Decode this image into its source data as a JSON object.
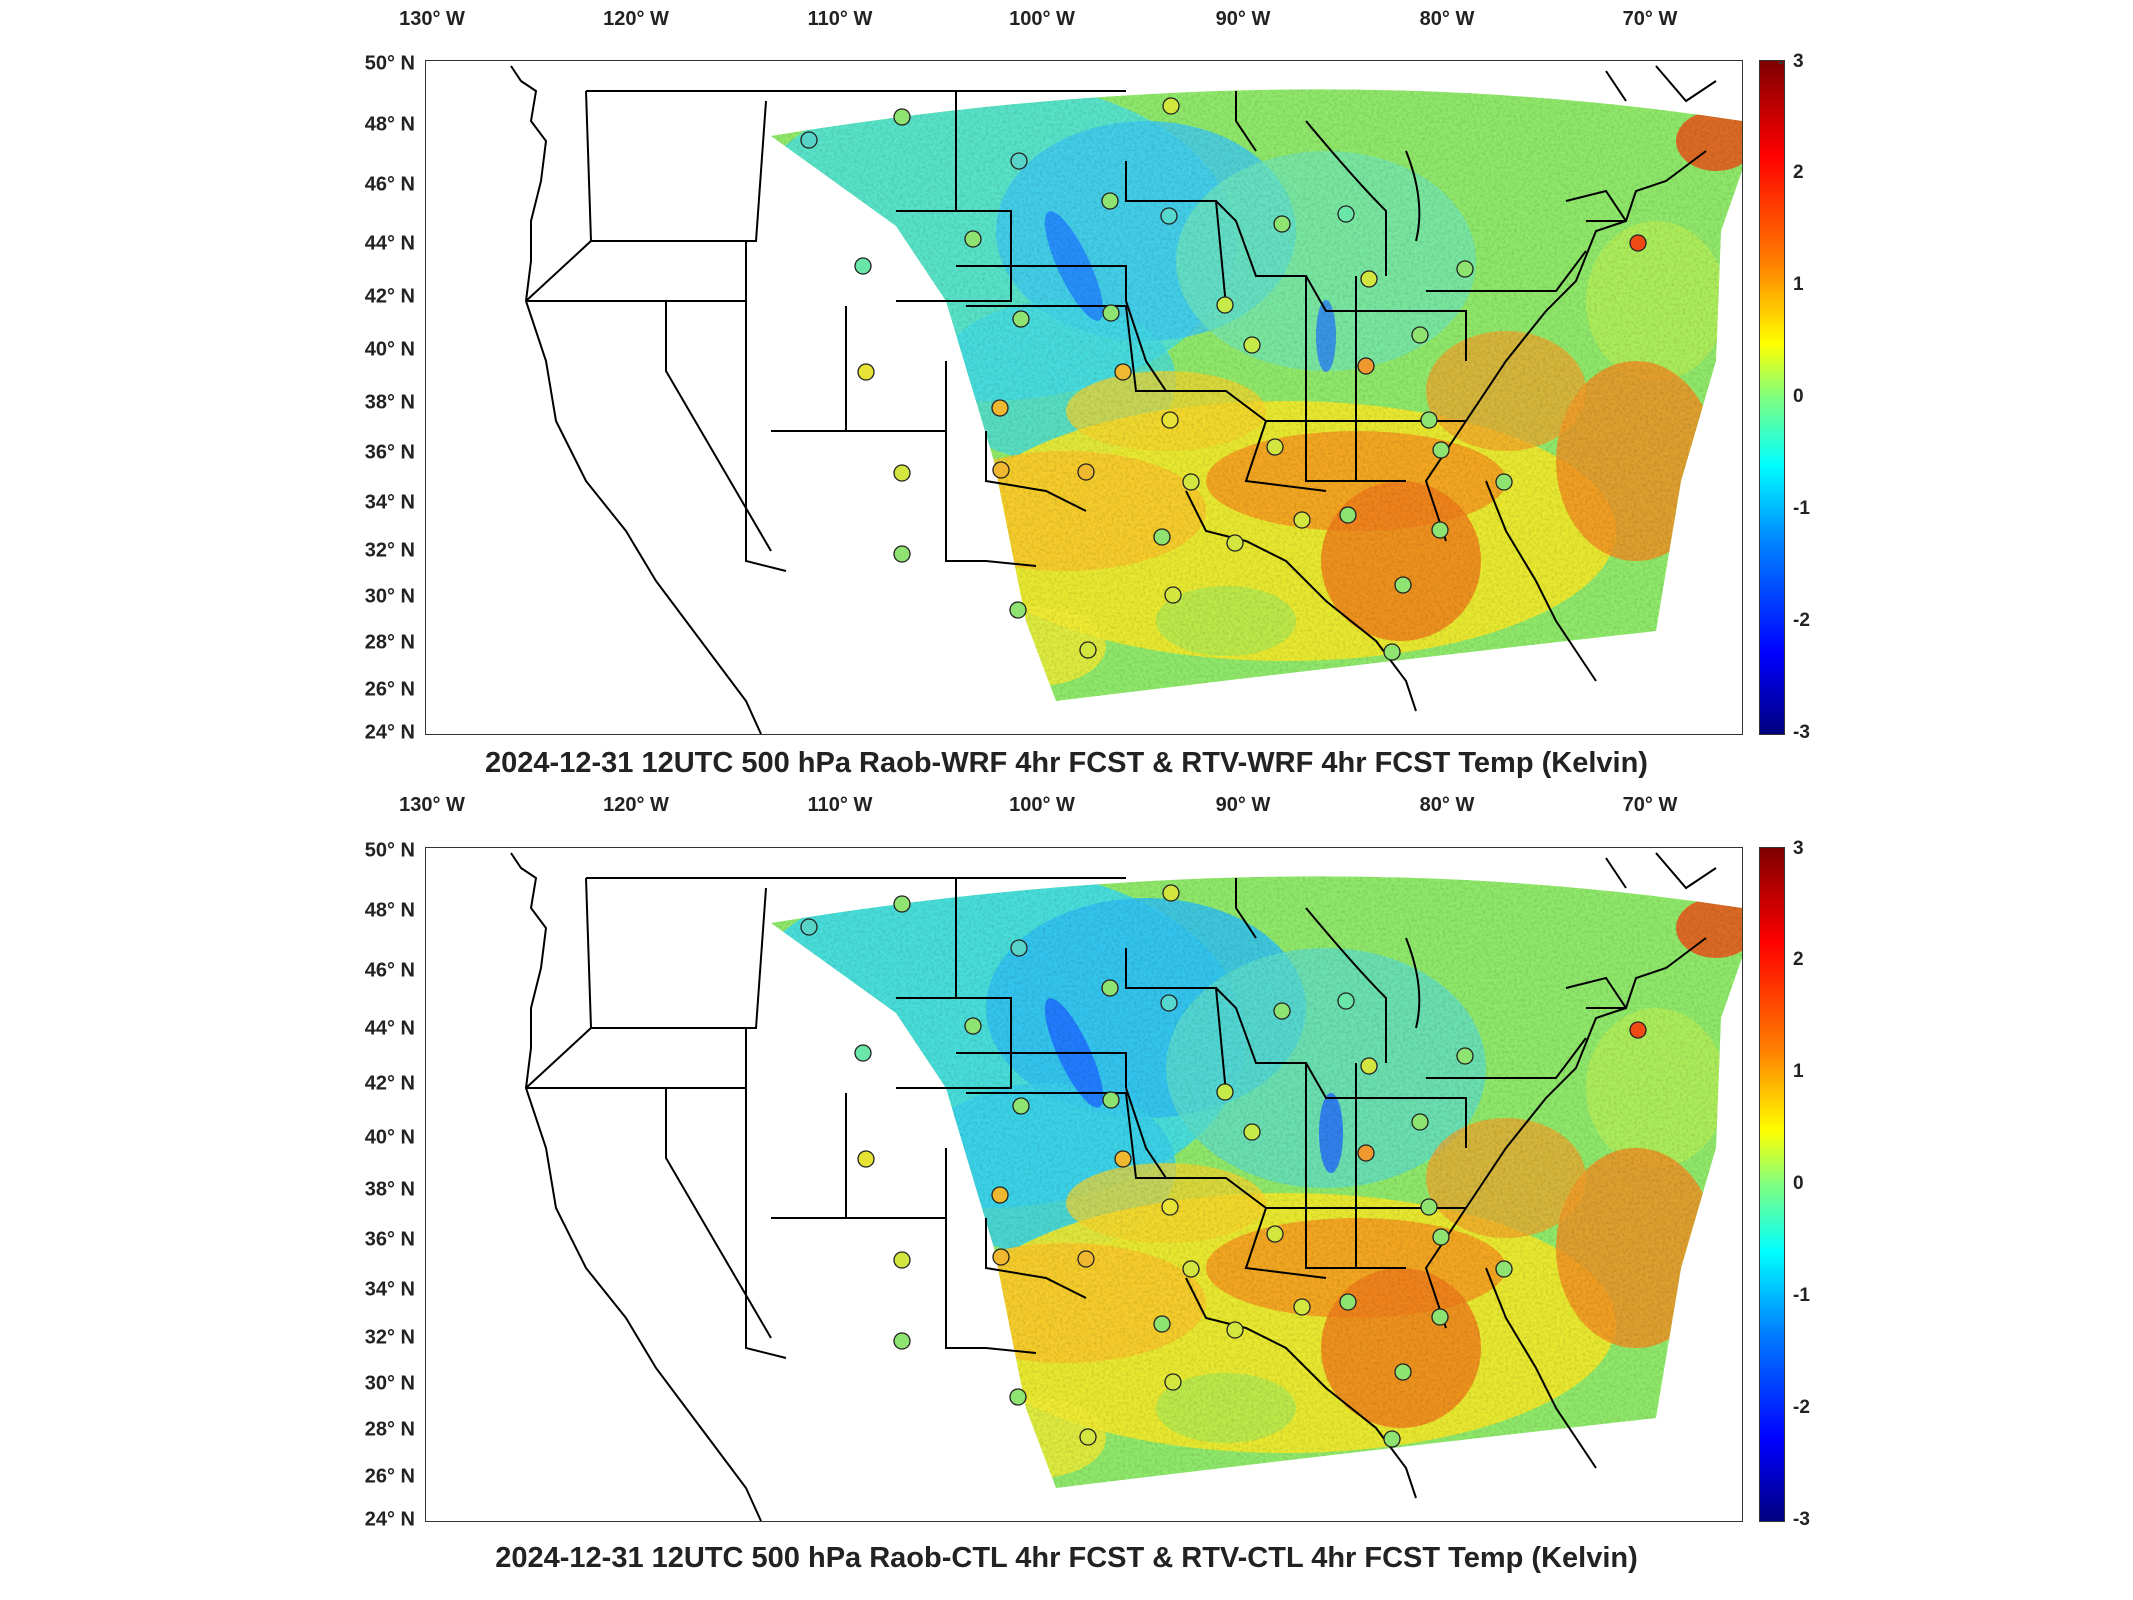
{
  "panels": [
    {
      "title": "2024-12-31 12UTC 500 hPa Raob-WRF 4hr FCST & RTV-WRF 4hr FCST Temp (Kelvin)",
      "lon_labels": [
        "130° W",
        "120° W",
        "110° W",
        "100° W",
        "90° W",
        "80° W",
        "70° W"
      ],
      "lat_labels": [
        "50° N",
        "48° N",
        "46° N",
        "44° N",
        "42° N",
        "40° N",
        "38° N",
        "36° N",
        "34° N",
        "32° N",
        "30° N",
        "28° N",
        "26° N",
        "24° N"
      ],
      "colorbar": {
        "ticks": [
          "3",
          "2",
          "1",
          "0",
          "-1",
          "-2",
          "-3"
        ],
        "range": [
          -3,
          3
        ]
      }
    },
    {
      "title": "2024-12-31 12UTC 500 hPa Raob-CTL 4hr FCST & RTV-CTL 4hr FCST Temp (Kelvin)",
      "lon_labels": [
        "130° W",
        "120° W",
        "110° W",
        "100° W",
        "90° W",
        "80° W",
        "70° W"
      ],
      "lat_labels": [
        "50° N",
        "48° N",
        "46° N",
        "44° N",
        "42° N",
        "40° N",
        "38° N",
        "36° N",
        "34° N",
        "32° N",
        "30° N",
        "28° N",
        "26° N",
        "24° N"
      ],
      "colorbar": {
        "ticks": [
          "3",
          "2",
          "1",
          "0",
          "-1",
          "-2",
          "-3"
        ],
        "range": [
          -3,
          3
        ]
      }
    }
  ],
  "colormap": [
    "#00007f",
    "#0000ff",
    "#007fff",
    "#00ffff",
    "#7fff7f",
    "#ffff00",
    "#ff7f00",
    "#ff0000",
    "#7f0000"
  ]
}
